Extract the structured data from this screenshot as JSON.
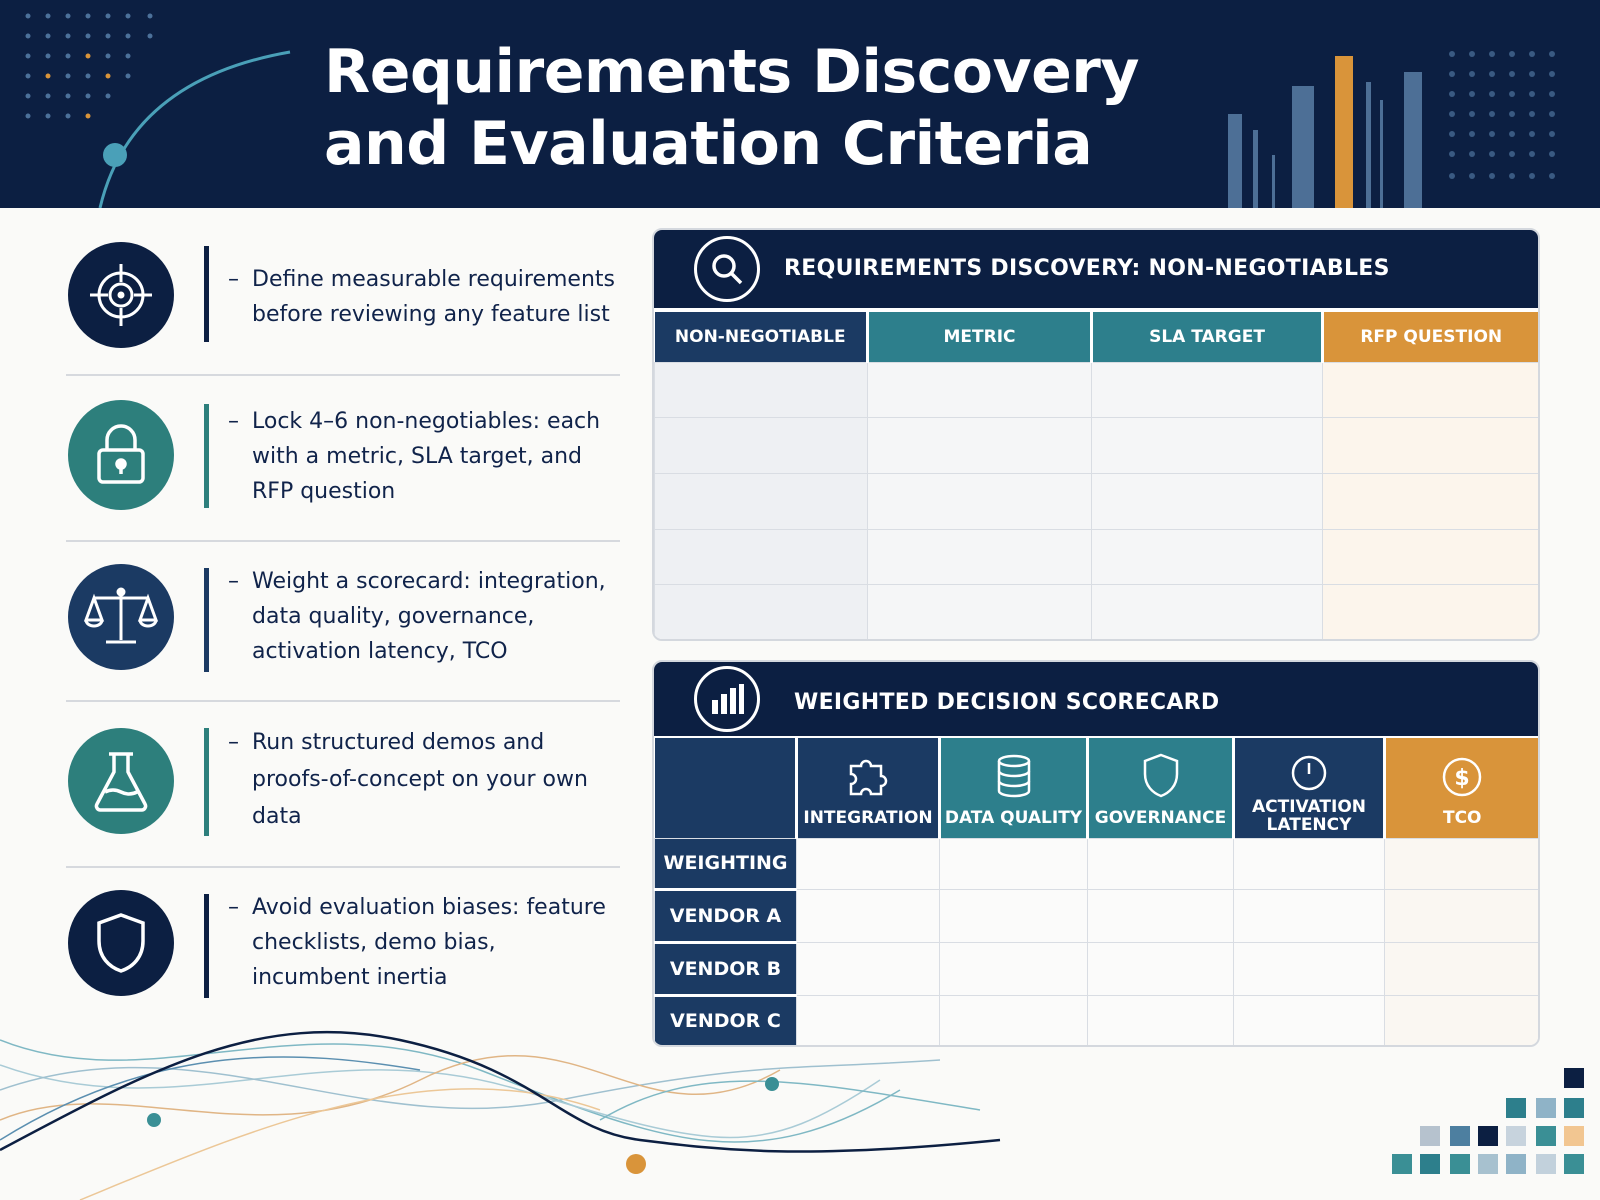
{
  "header": {
    "title_line1": "Requirements Discovery",
    "title_line2": "and Evaluation Criteria"
  },
  "steps": [
    {
      "icon": "target-icon",
      "color": "#0c1f42",
      "text": "Define measurable requirements before reviewing any feature list"
    },
    {
      "icon": "lock-icon",
      "color": "#2d7f7c",
      "text": "Lock 4–6 non-negotiables: each with a metric, SLA target, and RFP question"
    },
    {
      "icon": "scales-icon",
      "color": "#1b3a63",
      "text": "Weight a scorecard: integration, data quality, governance, activation latency, TCO"
    },
    {
      "icon": "flask-icon",
      "color": "#2d7f7c",
      "text": "Run structured demos and proofs-of-concept on your own data"
    },
    {
      "icon": "shield-icon",
      "color": "#0c1f42",
      "text": "Avoid evaluation biases: feature checklists, demo bias, incumbent inertia"
    }
  ],
  "discovery_panel": {
    "title": "REQUIREMENTS DISCOVERY: NON-NEGOTIABLES",
    "icon": "magnifier-icon",
    "columns": [
      {
        "label": "NON-NEGOTIABLE",
        "color": "#1b3a63",
        "fill": "#eef0f3"
      },
      {
        "label": "METRIC",
        "color": "#2d7f8c",
        "fill": "#f5f6f7"
      },
      {
        "label": "SLA TARGET",
        "color": "#2d7f8c",
        "fill": "#f5f6f7"
      },
      {
        "label": "RFP QUESTION",
        "color": "#d9943a",
        "fill": "#fcf5ec"
      }
    ],
    "row_count": 5
  },
  "scorecard_panel": {
    "title": "WEIGHTED DECISION SCORECARD",
    "icon": "bar-chart-icon",
    "columns": [
      {
        "label": "INTEGRATION",
        "icon": "puzzle-icon",
        "color": "#1b3a63"
      },
      {
        "label": "DATA QUALITY",
        "icon": "database-icon",
        "color": "#2d7f8c"
      },
      {
        "label": "GOVERNANCE",
        "icon": "shield-icon",
        "color": "#2d7f8c"
      },
      {
        "label_line1": "ACTIVATION",
        "label_line2": "LATENCY",
        "icon": "clock-icon",
        "color": "#1b3a63"
      },
      {
        "label": "TCO",
        "icon": "dollar-icon",
        "color": "#d9943a"
      }
    ],
    "rows": [
      "WEIGHTING",
      "VENDOR A",
      "VENDOR B",
      "VENDOR C"
    ]
  }
}
